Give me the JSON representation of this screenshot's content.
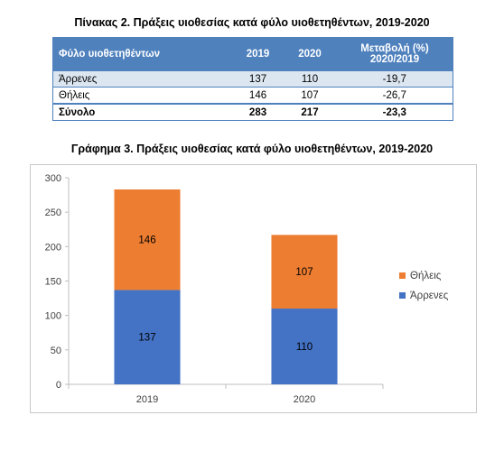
{
  "table": {
    "title": "Πίνακας 2. Πράξεις υιοθεσίας κατά φύλο υιοθετηθέντων, 2019-2020",
    "headers": [
      "Φύλο υιοθετηθέντων",
      "2019",
      "2020",
      "Μεταβολή (%) 2020/2019"
    ],
    "rows": [
      [
        "Άρρενες",
        "137",
        "110",
        "-19,7"
      ],
      [
        "Θήλεις",
        "146",
        "107",
        "-26,7"
      ],
      [
        "Σύνολο",
        "283",
        "217",
        "-23,3"
      ]
    ]
  },
  "chart_data": {
    "type": "bar",
    "stacked": true,
    "title": "Γράφημα 3. Πράξεις υιοθεσίας κατά φύλο υιοθετηθέντων, 2019-2020",
    "categories": [
      "2019",
      "2020"
    ],
    "series": [
      {
        "name": "Άρρενες",
        "values": [
          137,
          110
        ],
        "color": "#4472c4"
      },
      {
        "name": "Θήλεις",
        "values": [
          146,
          107
        ],
        "color": "#ed7d31"
      }
    ],
    "ylim": [
      0,
      300
    ],
    "yticks": [
      0,
      50,
      100,
      150,
      200,
      250,
      300
    ],
    "grid": false,
    "legend": "right"
  }
}
